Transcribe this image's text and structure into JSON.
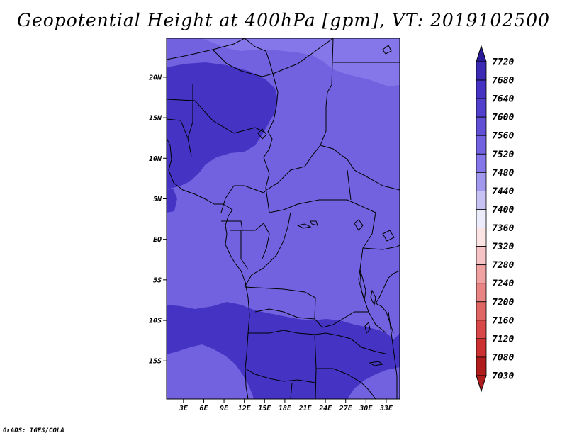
{
  "title": "Geopotential Height at 400hPa [gpm], VT: 2019102500",
  "credit": "GrADS: IGES/COLA",
  "map": {
    "lat_labels": [
      "20N",
      "15N",
      "10N",
      "5N",
      "EQ",
      "5S",
      "10S",
      "15S"
    ],
    "lat_values": [
      20,
      15,
      10,
      5,
      0,
      -5,
      -10,
      -15
    ],
    "lon_labels": [
      "3E",
      "6E",
      "9E",
      "12E",
      "15E",
      "18E",
      "21E",
      "24E",
      "27E",
      "30E",
      "33E"
    ],
    "lon_values": [
      3,
      6,
      9,
      12,
      15,
      18,
      21,
      24,
      27,
      30,
      33
    ],
    "lon_range": [
      0.5,
      35
    ],
    "lat_range": [
      -19.7,
      24.8
    ]
  },
  "colorbar": {
    "labels": [
      "7720",
      "7680",
      "7640",
      "7600",
      "7560",
      "7520",
      "7480",
      "7440",
      "7400",
      "7360",
      "7320",
      "7280",
      "7240",
      "7200",
      "7160",
      "7120",
      "7080",
      "7030"
    ],
    "colors": [
      "#2a1a9a",
      "#3a2ab4",
      "#4533c4",
      "#5040cc",
      "#6150d6",
      "#7262e0",
      "#8577ea",
      "#a199ee",
      "#c7c2f4",
      "#ececfa",
      "#fbe4e4",
      "#f6c4c4",
      "#f0a2a2",
      "#e88484",
      "#e06666",
      "#d84848",
      "#cc3030",
      "#b01c1c"
    ]
  },
  "fields": {
    "shade_low": "#7262e0",
    "shade_high": "#4533c4",
    "shade_top": "#8577ea"
  }
}
